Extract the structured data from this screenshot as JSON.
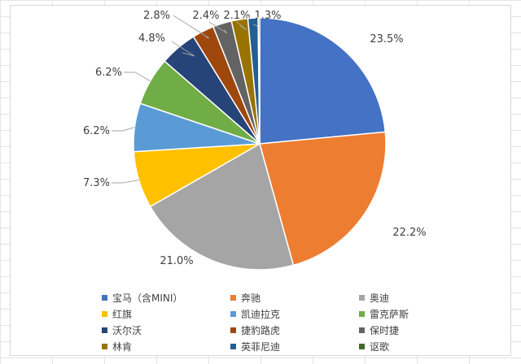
{
  "chart_data": {
    "type": "pie",
    "series": [
      {
        "categories": [
          "宝马（含MINI）",
          "奔驰",
          "奥迪",
          "红旗",
          "凯迪拉克",
          "雷克萨斯",
          "沃尔沃",
          "捷豹路虎",
          "保时捷",
          "林肯",
          "英菲尼迪",
          "讴歌"
        ],
        "values": [
          23.5,
          22.2,
          21.0,
          7.3,
          6.2,
          6.2,
          4.8,
          2.8,
          2.4,
          2.1,
          1.3,
          0.2
        ],
        "labels": [
          "23.5%",
          "22.2%",
          "21.0%",
          "7.3%",
          "6.2%",
          "6.2%",
          "4.8%",
          "2.8%",
          "2.4%",
          "2.1%",
          "1.3%",
          ""
        ],
        "colors": [
          "#4472C4",
          "#ED7D31",
          "#A5A5A5",
          "#FFC000",
          "#5B9BD5",
          "#70AD47",
          "#264478",
          "#9E480E",
          "#636363",
          "#997300",
          "#255E91",
          "#43682B"
        ]
      }
    ],
    "start_angle": "12 o'clock",
    "direction": "clockwise",
    "legend": {
      "placement": "bottom",
      "columns": 3
    }
  }
}
